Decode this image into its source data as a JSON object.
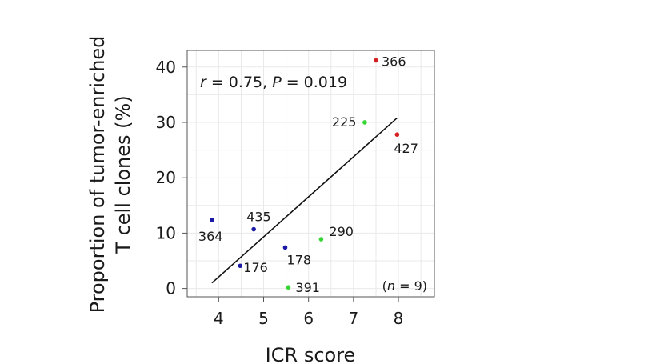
{
  "chart_data": {
    "type": "scatter",
    "xlabel": "ICR score",
    "ylabel_lines": [
      "Proportion of tumor-enriched",
      "T cell clones (%)"
    ],
    "xlim": [
      3.3,
      8.8
    ],
    "ylim": [
      -1.5,
      43
    ],
    "xticks": [
      4,
      5,
      6,
      7,
      8
    ],
    "yticks": [
      0,
      10,
      20,
      30,
      40
    ],
    "grid": true,
    "stat_annotation": {
      "r_symbol": "r",
      "r_text": " = 0.75, ",
      "p_symbol": "P",
      "p_text": " = 0.019"
    },
    "n_annotation": {
      "open": "(",
      "n_symbol": "n",
      "rest": " = 9)"
    },
    "colors": {
      "blue": "#1a1aa6",
      "green": "#33d633",
      "red": "#d42020",
      "line": "#111111",
      "axis": "#555555"
    },
    "points": [
      {
        "id": "364",
        "label": "364",
        "x": 3.85,
        "y": 12.4,
        "group": "blue"
      },
      {
        "id": "435",
        "label": "435",
        "x": 4.78,
        "y": 10.7,
        "group": "blue"
      },
      {
        "id": "176",
        "label": "176",
        "x": 4.48,
        "y": 4.1,
        "group": "blue"
      },
      {
        "id": "178",
        "label": "178",
        "x": 5.48,
        "y": 7.4,
        "group": "blue"
      },
      {
        "id": "391",
        "label": "391",
        "x": 5.55,
        "y": 0.2,
        "group": "green"
      },
      {
        "id": "290",
        "label": "290",
        "x": 6.28,
        "y": 8.9,
        "group": "green"
      },
      {
        "id": "225",
        "label": "225",
        "x": 7.25,
        "y": 30.0,
        "group": "green"
      },
      {
        "id": "366",
        "label": "366",
        "x": 7.5,
        "y": 41.2,
        "group": "red"
      },
      {
        "id": "427",
        "label": "427",
        "x": 7.97,
        "y": 27.8,
        "group": "red"
      }
    ],
    "regression": {
      "x1": 3.85,
      "y1": 1.0,
      "x2": 7.97,
      "y2": 30.8
    }
  }
}
